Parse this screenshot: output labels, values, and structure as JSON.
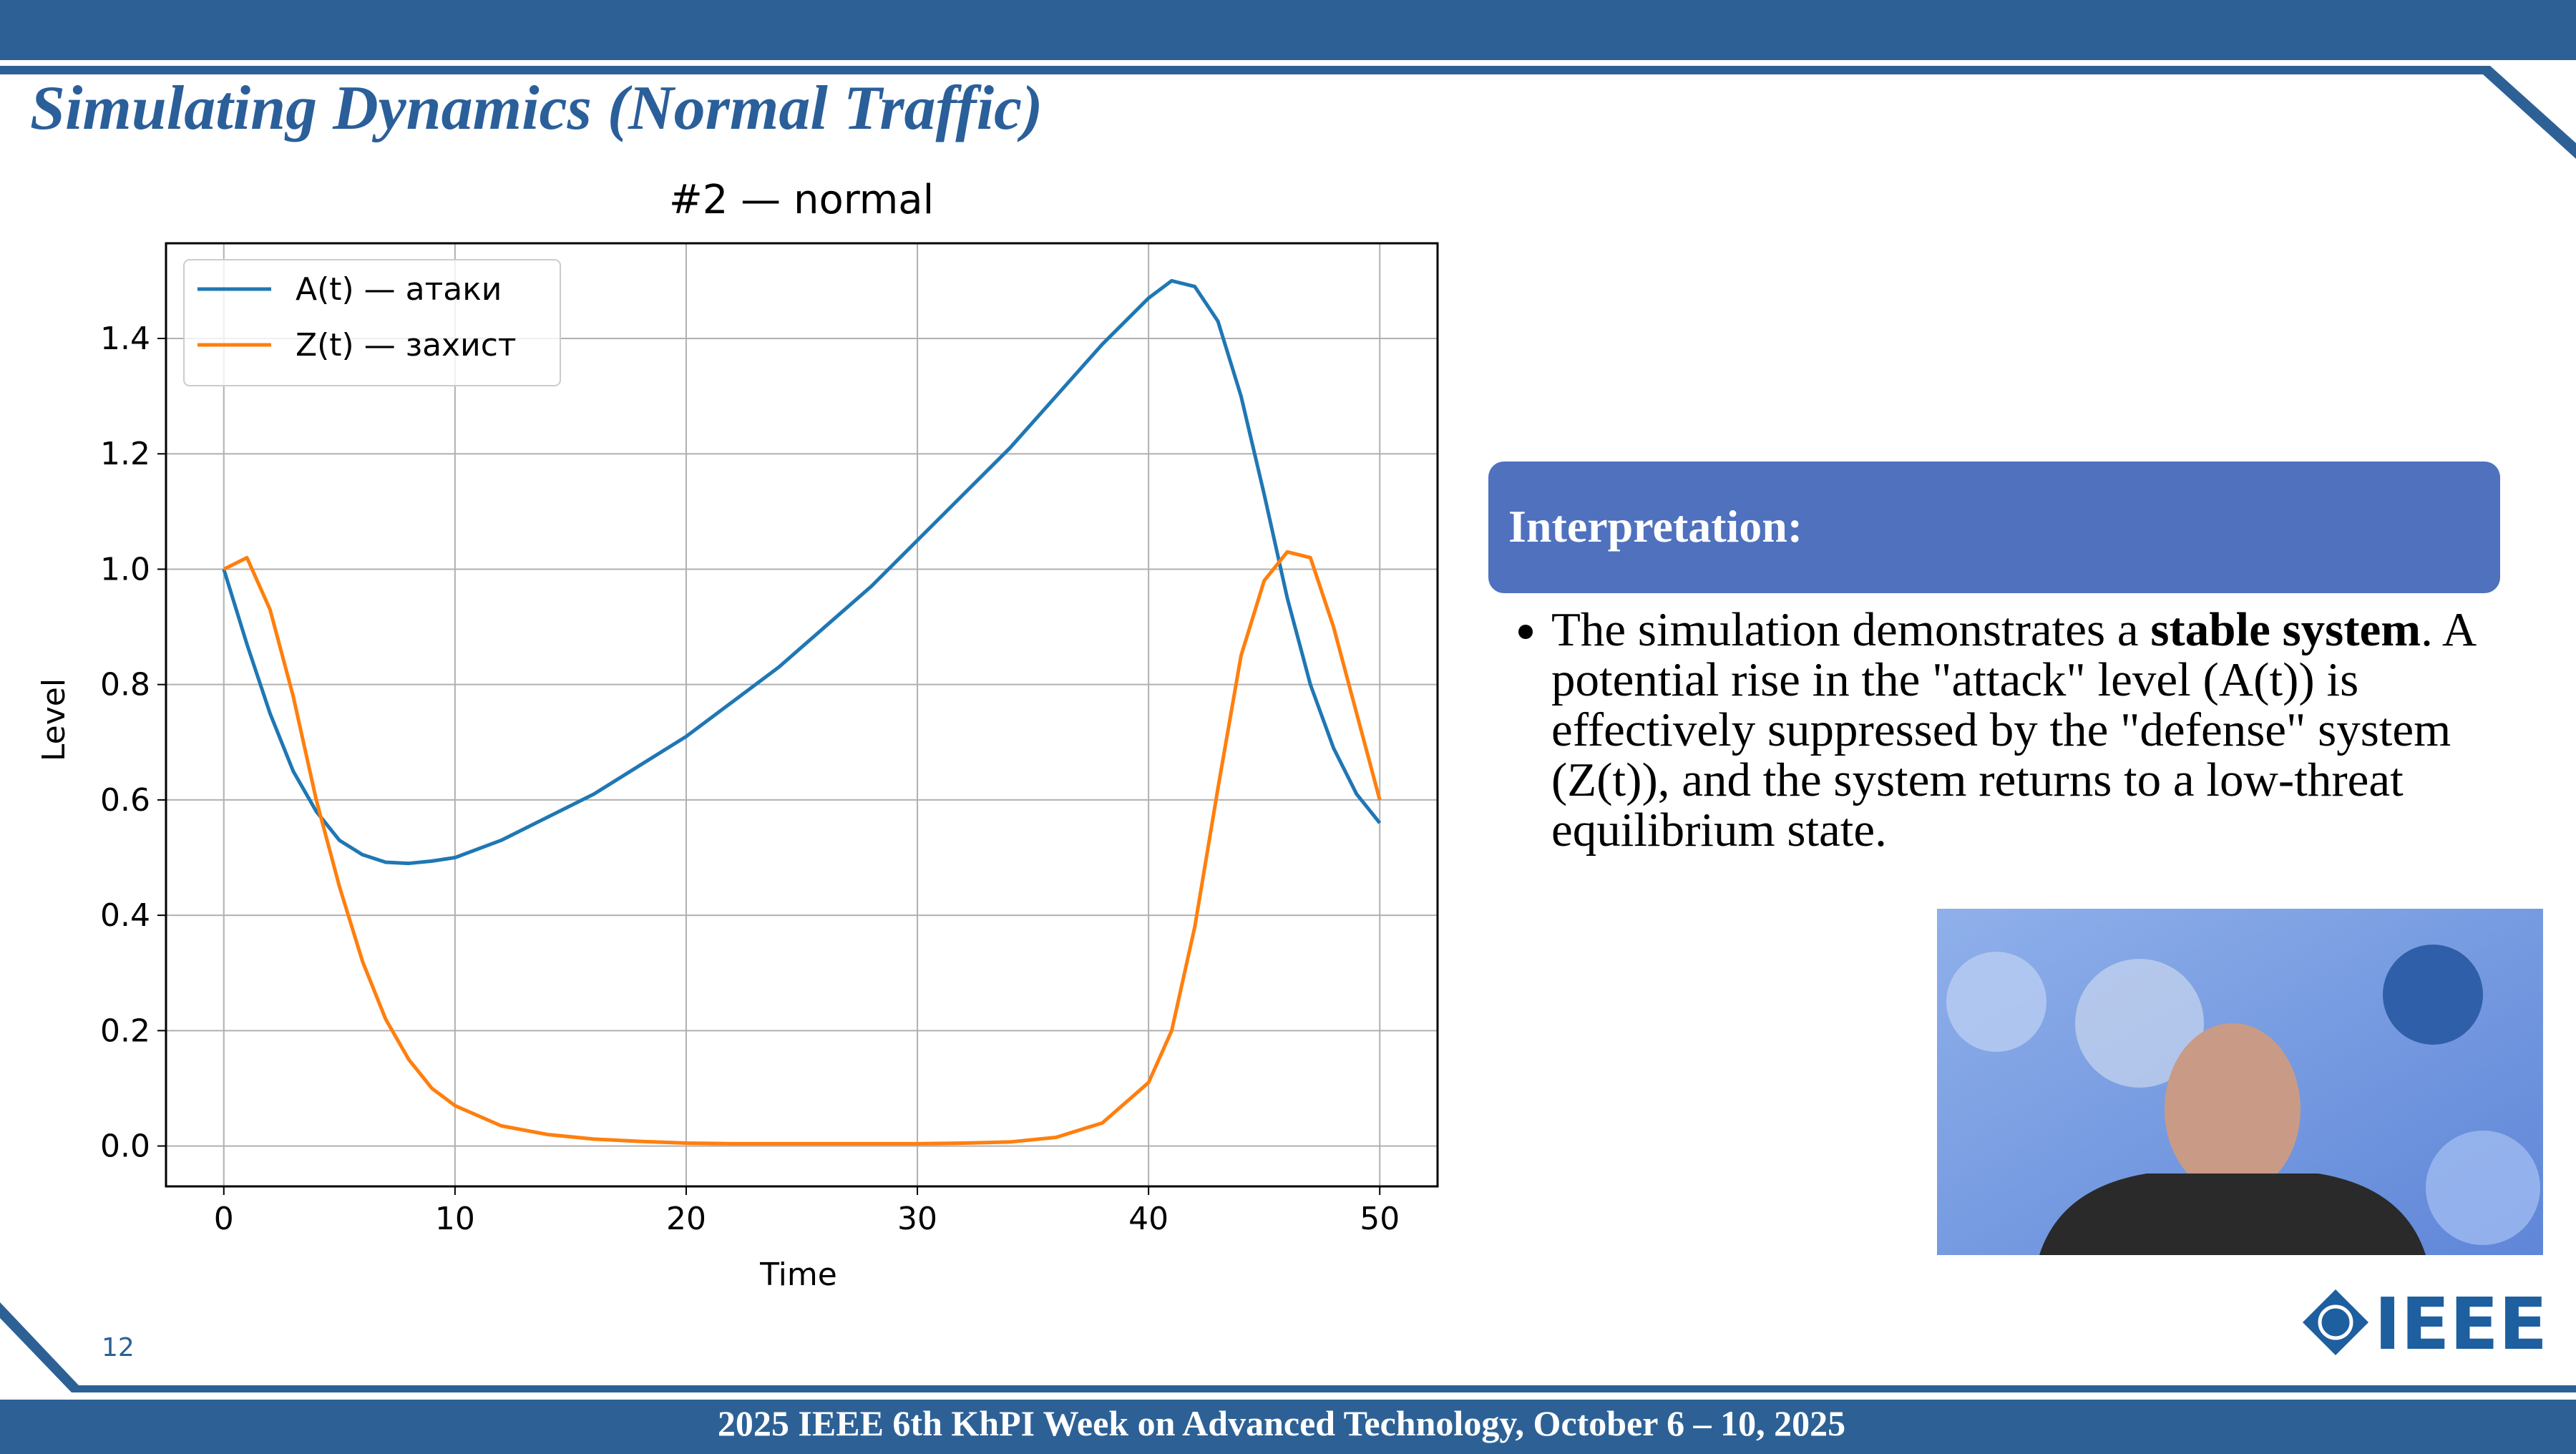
{
  "slide": {
    "title": "Simulating Dynamics (Normal Traffic)",
    "panel_heading": "Interpretation:",
    "bullet": [
      "The simulation demonstrates a ",
      "stable system",
      ". A potential rise in the \"attack\" level (A(t)) is effectively suppressed by the \"defense\" system (Z(t)), and the system returns to a low-threat equilibrium state."
    ],
    "page_number": "12",
    "logo": "IEEE",
    "footer": "2025 IEEE 6th KhPI Week on Advanced Technology, October 6 – 10, 2025"
  },
  "chart_data": {
    "type": "line",
    "title": "#2 — normal",
    "x_label": "Time",
    "y_label": "Level",
    "x": [
      0,
      1,
      2,
      3,
      4,
      5,
      6,
      7,
      8,
      9,
      10,
      12,
      14,
      16,
      18,
      20,
      22,
      24,
      26,
      28,
      30,
      32,
      34,
      36,
      38,
      40,
      41,
      42,
      43,
      44,
      45,
      46,
      47,
      48,
      49,
      50
    ],
    "series": [
      {
        "name": "A(t) — атаки",
        "color": "#1f77b4",
        "values": [
          1.0,
          0.87,
          0.75,
          0.65,
          0.58,
          0.53,
          0.505,
          0.492,
          0.49,
          0.494,
          0.5,
          0.53,
          0.57,
          0.61,
          0.66,
          0.71,
          0.77,
          0.83,
          0.9,
          0.97,
          1.05,
          1.13,
          1.21,
          1.3,
          1.39,
          1.47,
          1.5,
          1.49,
          1.43,
          1.3,
          1.13,
          0.95,
          0.8,
          0.69,
          0.61,
          0.56
        ]
      },
      {
        "name": "Z(t) — захист",
        "color": "#ff7f0e",
        "values": [
          1.0,
          1.02,
          0.93,
          0.78,
          0.6,
          0.45,
          0.32,
          0.22,
          0.15,
          0.1,
          0.07,
          0.035,
          0.02,
          0.012,
          0.008,
          0.005,
          0.004,
          0.004,
          0.004,
          0.004,
          0.004,
          0.005,
          0.007,
          0.015,
          0.04,
          0.11,
          0.2,
          0.38,
          0.62,
          0.85,
          0.98,
          1.03,
          1.02,
          0.9,
          0.75,
          0.6
        ]
      }
    ],
    "xlim": [
      -2.5,
      52.5
    ],
    "xticks": [
      0,
      10,
      20,
      30,
      40,
      50
    ],
    "ylim": [
      -0.07,
      1.565
    ],
    "yticks": [
      {
        "value": 0,
        "label": "0.0"
      },
      0.2,
      0.4,
      0.6,
      0.8,
      {
        "value": 1,
        "label": "1.0"
      },
      1.2,
      1.4
    ],
    "grid": true,
    "legend": "upper left"
  }
}
